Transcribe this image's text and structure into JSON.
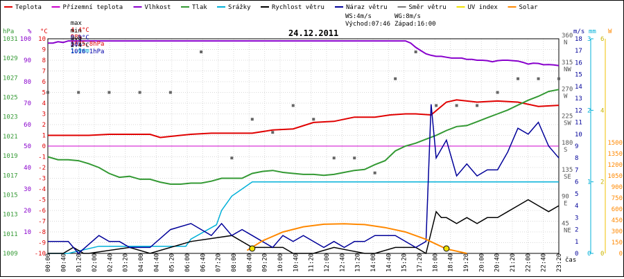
{
  "chart_data": {
    "type": "line",
    "title": "24.12.2011",
    "legend": [
      {
        "name": "Teplota",
        "color": "#e00000"
      },
      {
        "name": "Přízemní teplota",
        "color": "#cc00cc"
      },
      {
        "name": "Vlhkost",
        "color": "#8800cc"
      },
      {
        "name": "Tlak",
        "color": "#339933"
      },
      {
        "name": "Srážky",
        "color": "#00b0d8"
      },
      {
        "name": "Rychlost větru",
        "color": "#000000"
      },
      {
        "name": "Náraz větru",
        "color": "#000099"
      },
      {
        "name": "Směr větru",
        "color": "#777777"
      },
      {
        "name": "UV index",
        "color": "#f0e000"
      },
      {
        "name": "Solar",
        "color": "#ff8800"
      }
    ],
    "stats": {
      "max_label": "max",
      "max_temp": "4.4°C",
      "max_hum": "98%",
      "max_press": "1025.8hPa",
      "rain": "1.0mm",
      "min_label": "min",
      "min_temp": "0.9°C",
      "min_hum": "84%",
      "min_press": "1016.1hPa",
      "avg_label": "avg",
      "avg_temp": "2.4°C"
    },
    "wind_info": {
      "ws": "WS:4m/s",
      "wg": "WG:8m/s",
      "sunrise": "Východ:07:46",
      "sunset": "Západ:16:00"
    },
    "x_ticks": [
      "00:00",
      "00:40",
      "01:20",
      "02:00",
      "02:40",
      "03:20",
      "04:00",
      "04:40",
      "05:20",
      "06:00",
      "06:40",
      "07:20",
      "08:00",
      "08:40",
      "09:20",
      "10:00",
      "10:40",
      "11:20",
      "12:00",
      "12:40",
      "13:20",
      "14:00",
      "14:40",
      "15:20",
      "17:20",
      "18:00",
      "18:40",
      "19:20",
      "20:00",
      "20:40",
      "21:20",
      "22:00",
      "22:40",
      "23:20"
    ],
    "x_unit": "čas",
    "axes": {
      "hpa": {
        "unit": "hPa",
        "ticks": [
          "1031",
          "1029",
          "1027",
          "1025",
          "1023",
          "1021",
          "1019",
          "1017",
          "1015",
          "1013",
          "1011",
          "1009"
        ]
      },
      "pct": {
        "unit": "%",
        "ticks": [
          "100",
          "90",
          "80",
          "70",
          "60",
          "50",
          "40",
          "30",
          "20",
          "10"
        ]
      },
      "degc": {
        "unit": "°C",
        "ticks": [
          "10",
          "9",
          "8",
          "7",
          "6",
          "5",
          "4",
          "3",
          "2",
          "1",
          "0",
          "-1",
          "-2",
          "-3",
          "-4",
          "-5",
          "-6",
          "-7",
          "-8",
          "-9",
          "-10"
        ]
      },
      "dir": {
        "ticks": [
          {
            "v": "360",
            "c": "N"
          },
          {
            "v": "315",
            "c": "NW"
          },
          {
            "v": "270",
            "c": "W"
          },
          {
            "v": "225",
            "c": "SW"
          },
          {
            "v": "180",
            "c": "S"
          },
          {
            "v": "135",
            "c": "SE"
          },
          {
            "v": "90",
            "c": "E"
          },
          {
            "v": "45",
            "c": "NE"
          }
        ]
      },
      "ms": {
        "unit": "m/s",
        "ticks": [
          "18",
          "17",
          "16",
          "15",
          "14",
          "13",
          "12",
          "11",
          "10",
          "9",
          "8",
          "7",
          "6",
          "5",
          "4",
          "3",
          "2",
          "1",
          "0"
        ]
      },
      "mm": {
        "unit": "mm",
        "ticks": [
          "3",
          "2",
          "1",
          "0"
        ]
      },
      "uv": {
        "ticks": [
          "6",
          "4",
          "2",
          "0"
        ]
      },
      "w": {
        "unit": "W",
        "ticks": [
          "1500",
          "1350",
          "1200",
          "1050",
          "900",
          "750",
          "600",
          "450",
          "300",
          "150",
          "0"
        ]
      }
    },
    "series": [
      {
        "name": "Teplota",
        "unit": "°C",
        "x": [
          0,
          4,
          8,
          12,
          16,
          20,
          22,
          24,
          28,
          32,
          36,
          40,
          44,
          48,
          52,
          56,
          60,
          62,
          64,
          67,
          70,
          72,
          75,
          78,
          80,
          84,
          88,
          92,
          96,
          100
        ],
        "y": [
          1,
          1,
          1,
          1.1,
          1.1,
          1.1,
          0.8,
          0.9,
          1.1,
          1.2,
          1.2,
          1.2,
          1.5,
          1.6,
          2.2,
          2.3,
          2.7,
          2.7,
          2.7,
          2.9,
          3.0,
          3.0,
          2.9,
          4.1,
          4.3,
          4.1,
          4.2,
          4.1,
          3.7,
          3.8
        ]
      },
      {
        "name": "Vlhkost",
        "unit": "%",
        "x": [
          0,
          1,
          2,
          3,
          4,
          5,
          70,
          71,
          72,
          73,
          74,
          75,
          76,
          77,
          78,
          79,
          80,
          81,
          82,
          83,
          84,
          85,
          86,
          87,
          88,
          89,
          90,
          91,
          92,
          93,
          94,
          95,
          96,
          97,
          98,
          99,
          100
        ],
        "y": [
          98,
          98,
          98.6,
          98.3,
          99,
          99,
          99,
          98,
          96,
          94.5,
          93,
          92.3,
          91.8,
          91.8,
          91.4,
          91,
          91,
          91,
          90.4,
          90.4,
          90,
          90,
          89.8,
          89.3,
          89.8,
          90,
          90,
          89.8,
          89.6,
          89,
          88.2,
          88.6,
          88.5,
          87.9,
          88,
          87.8,
          87.5
        ]
      },
      {
        "name": "Tlak",
        "unit": "hPa",
        "x": [
          0,
          2,
          4,
          6,
          8,
          10,
          12,
          14,
          16,
          18,
          20,
          22,
          24,
          26,
          28,
          30,
          32,
          34,
          36,
          38,
          40,
          42,
          44,
          46,
          48,
          50,
          52,
          54,
          56,
          58,
          60,
          62,
          64,
          66,
          68,
          70,
          72,
          74,
          76,
          78,
          80,
          82,
          84,
          86,
          88,
          90,
          92,
          94,
          96,
          98,
          100
        ],
        "y": [
          1018.9,
          1018.6,
          1018.6,
          1018.5,
          1018.2,
          1017.8,
          1017.2,
          1016.8,
          1016.9,
          1016.6,
          1016.6,
          1016.3,
          1016.1,
          1016.1,
          1016.2,
          1016.2,
          1016.4,
          1016.7,
          1016.7,
          1016.7,
          1017.2,
          1017.4,
          1017.5,
          1017.3,
          1017.2,
          1017.1,
          1017.1,
          1017.0,
          1017.1,
          1017.3,
          1017.5,
          1017.6,
          1018.1,
          1018.5,
          1019.5,
          1020.0,
          1020.3,
          1020.7,
          1021.1,
          1021.6,
          1022.0,
          1022.1,
          1022.5,
          1022.9,
          1023.3,
          1023.7,
          1024.2,
          1024.7,
          1025.1,
          1025.6,
          1025.8
        ]
      },
      {
        "name": "Srážky",
        "unit": "mm",
        "x": [
          0,
          3,
          4,
          10,
          12,
          24,
          27,
          28,
          33,
          34,
          36,
          38,
          40,
          52,
          59,
          60,
          100
        ],
        "y": [
          0,
          0,
          0,
          0.1,
          0.1,
          0.1,
          0.1,
          0.2,
          0.4,
          0.6,
          0.8,
          0.9,
          1.0,
          1.0,
          1.0,
          1.0,
          1.0
        ]
      },
      {
        "name": "Rychlost větru",
        "unit": "m/s",
        "x": [
          0,
          3,
          5,
          7,
          8,
          16,
          20,
          24,
          28,
          36,
          40,
          46,
          48,
          52,
          56,
          62,
          64,
          68,
          72,
          74,
          76,
          77,
          78,
          80,
          82,
          84,
          86,
          88,
          90,
          92,
          94,
          96,
          98,
          100
        ],
        "y": [
          0,
          0,
          0.5,
          0,
          0,
          0.5,
          0,
          0.5,
          1,
          1.5,
          0.5,
          0.5,
          0,
          0,
          0.5,
          0,
          0,
          0.5,
          0.5,
          0,
          3.5,
          3,
          3,
          2.5,
          3,
          2.5,
          3,
          3,
          3.5,
          4,
          4.5,
          4,
          3.5,
          4
        ]
      },
      {
        "name": "Náraz větru",
        "unit": "m/s",
        "x": [
          0,
          4,
          6,
          10,
          12,
          14,
          16,
          20,
          24,
          28,
          32,
          34,
          36,
          38,
          40,
          42,
          44,
          46,
          48,
          50,
          54,
          56,
          58,
          60,
          62,
          64,
          68,
          72,
          74,
          75,
          76,
          78,
          80,
          82,
          84,
          86,
          88,
          90,
          92,
          94,
          96,
          98,
          100
        ],
        "y": [
          1,
          1,
          0,
          1.5,
          1,
          1,
          0.5,
          0.5,
          2,
          2.5,
          1.5,
          2.5,
          1.5,
          2,
          1.5,
          1,
          0.5,
          1.5,
          1,
          1.5,
          0.5,
          1,
          0.5,
          1,
          1,
          1.5,
          1.5,
          0.5,
          1,
          12.5,
          8,
          9.5,
          6.5,
          7.5,
          6.5,
          7,
          7,
          8.5,
          10.5,
          10,
          11,
          9,
          8
        ]
      },
      {
        "name": "Solar",
        "unit": "W",
        "x": [
          39,
          42,
          46,
          50,
          54,
          58,
          62,
          66,
          70,
          74,
          78,
          82
        ],
        "y": [
          40,
          170,
          290,
          360,
          395,
          400,
          390,
          350,
          290,
          190,
          60,
          0
        ]
      }
    ],
    "wind_direction": {
      "unit": "°",
      "x": [
        0,
        6,
        12,
        18,
        24,
        30,
        36,
        40,
        44,
        48,
        52,
        56,
        60,
        64,
        68,
        72,
        76,
        80,
        84,
        88,
        92,
        96,
        100
      ],
      "y": [
        270,
        270,
        270,
        270,
        270,
        338,
        160,
        225,
        203,
        248,
        225,
        160,
        160,
        135,
        293,
        338,
        248,
        248,
        248,
        270,
        293,
        293,
        293
      ]
    },
    "uv_markers": {
      "x": [
        40,
        78
      ],
      "y": [
        0,
        0
      ]
    }
  }
}
